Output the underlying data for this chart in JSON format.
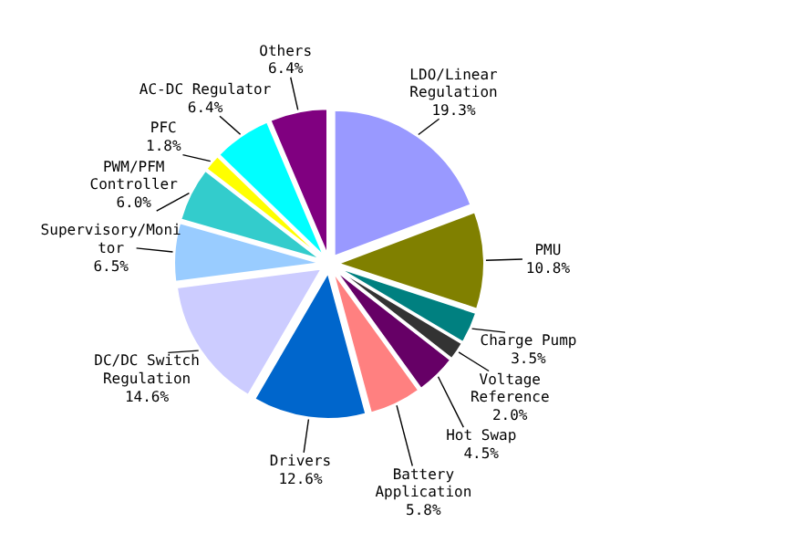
{
  "chart_data": {
    "type": "pie",
    "categories": [
      "LDO/Linear\nRegulation",
      "PMU",
      "Charge Pump",
      "Voltage\nReference",
      "Hot Swap",
      "Battery\nApplication",
      "Drivers",
      "DC/DC Switch\nRegulation",
      "Supervisory/Moni\ntor",
      "PWM/PFM\nController",
      "PFC",
      "AC-DC Regulator",
      "Others"
    ],
    "values": [
      19.3,
      10.8,
      3.5,
      2.0,
      4.5,
      5.8,
      12.6,
      14.6,
      6.5,
      6.0,
      1.8,
      6.4,
      6.4
    ],
    "colors": [
      "#9999ff",
      "#808000",
      "#008080",
      "#333333",
      "#660066",
      "#ff8080",
      "#0066cc",
      "#ccccff",
      "#99ccff",
      "#33cccc",
      "#ffff00",
      "#00ffff",
      "#800080"
    ],
    "value_labels": [
      "19.3%",
      "10.8%",
      "3.5%",
      "2.0%",
      "4.5%",
      "5.8%",
      "12.6%",
      "14.6%",
      "6.5%",
      "6.0%",
      "1.8%",
      "6.4%",
      "6.4%"
    ]
  }
}
